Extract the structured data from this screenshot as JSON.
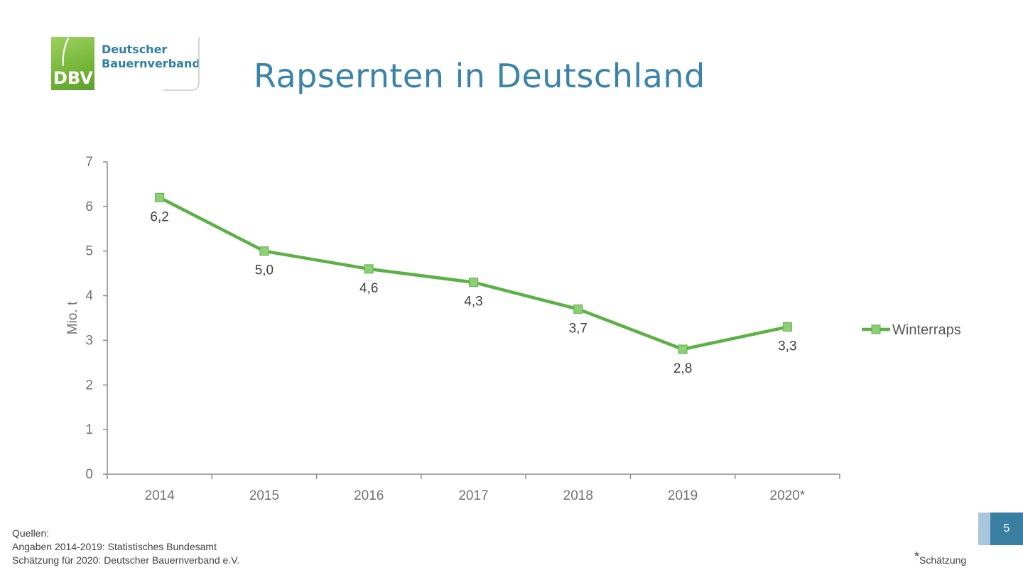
{
  "logo": {
    "abbr": "DBV",
    "name": "Deutscher\nBauernverband"
  },
  "title": "Rapsernten in Deutschland",
  "chart_data": {
    "type": "line",
    "title": "",
    "xlabel": "",
    "ylabel": "Mio. t",
    "categories": [
      "2014",
      "2015",
      "2016",
      "2017",
      "2018",
      "2019",
      "2020*"
    ],
    "ylim": [
      0,
      7
    ],
    "yticks": [
      0,
      1,
      2,
      3,
      4,
      5,
      6,
      7
    ],
    "grid": false,
    "legend_position": "right",
    "series": [
      {
        "name": "Winterraps",
        "values": [
          6.2,
          5.0,
          4.6,
          4.3,
          3.7,
          2.8,
          3.3
        ],
        "labels": [
          "6,2",
          "5,0",
          "4,6",
          "4,3",
          "3,7",
          "2,8",
          "3,3"
        ],
        "color": "#5cb146",
        "marker_color": "#8ccf74"
      }
    ]
  },
  "sources": {
    "heading": "Quellen:",
    "line1": "Angaben 2014-2019: Statistisches Bundesamt",
    "line2": "Schätzung für 2020: Deutscher Bauernverband e.V."
  },
  "footnote": {
    "star": "*",
    "text": "Schätzung"
  },
  "page_number": "5",
  "colors": {
    "title": "#3a84aa",
    "brand_green": "#77b83a",
    "brand_blue": "#2e7fa6",
    "axis": "#8c8c8c",
    "tick_text": "#737373"
  }
}
